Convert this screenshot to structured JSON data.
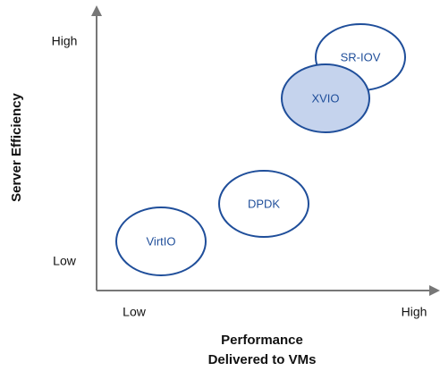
{
  "axes": {
    "x": {
      "title": [
        "Performance",
        "Delivered to VMs"
      ],
      "low": "Low",
      "high": "High"
    },
    "y": {
      "title": "Server Efficiency",
      "low": "Low",
      "high": "High"
    }
  },
  "nodes": [
    {
      "label": "VirtIO",
      "highlighted": false
    },
    {
      "label": "DPDK",
      "highlighted": false
    },
    {
      "label": "SR-IOV",
      "highlighted": false
    },
    {
      "label": "XVIO",
      "highlighted": true
    }
  ]
}
